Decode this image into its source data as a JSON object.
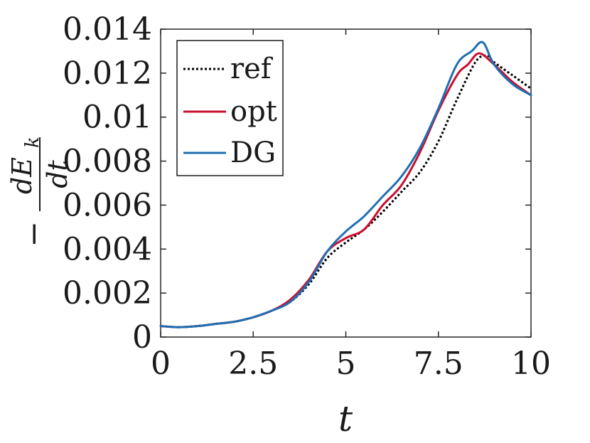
{
  "chart_data": {
    "type": "line",
    "title": "",
    "xlabel": "t",
    "ylabel": "-dE_k/dt",
    "ylabel_parts": {
      "sign": "−",
      "numerator": "dE",
      "subscript": "k",
      "denominator": "dt"
    },
    "xlim": [
      0,
      10
    ],
    "ylim": [
      0,
      0.014
    ],
    "xticks": [
      "0",
      "2.5",
      "5",
      "7.5",
      "10"
    ],
    "xtick_values": [
      0,
      2.5,
      5,
      7.5,
      10
    ],
    "yticks": [
      "0",
      "0.002",
      "0.004",
      "0.006",
      "0.008",
      "0.01",
      "0.012",
      "0.014"
    ],
    "ytick_values": [
      0,
      0.002,
      0.004,
      0.006,
      0.008,
      0.01,
      0.012,
      0.014
    ],
    "grid": false,
    "legend_position": "top-left",
    "series": [
      {
        "name": "ref",
        "color": "#000000",
        "style": "dotted",
        "x": [
          0,
          0.5,
          1,
          1.5,
          2,
          2.5,
          3,
          3.5,
          4,
          4.5,
          5,
          5.5,
          6,
          6.5,
          7,
          7.5,
          8,
          8.5,
          8.8,
          9,
          9.5,
          10
        ],
        "y": [
          0.0005,
          0.00045,
          0.0005,
          0.0006,
          0.0007,
          0.0009,
          0.0012,
          0.0016,
          0.0024,
          0.0036,
          0.0043,
          0.0049,
          0.0057,
          0.0066,
          0.0075,
          0.0089,
          0.0108,
          0.0125,
          0.0128,
          0.0125,
          0.0119,
          0.0113
        ]
      },
      {
        "name": "opt",
        "color": "#c8102e",
        "style": "solid",
        "x": [
          0,
          0.5,
          1,
          1.5,
          2,
          2.5,
          3,
          3.5,
          4,
          4.5,
          5,
          5.5,
          6,
          6.5,
          7,
          7.5,
          8,
          8.3,
          8.6,
          9,
          9.5,
          10
        ],
        "y": [
          0.0005,
          0.00045,
          0.0005,
          0.0006,
          0.0007,
          0.0009,
          0.0012,
          0.0017,
          0.0026,
          0.0039,
          0.0045,
          0.0049,
          0.006,
          0.0069,
          0.0084,
          0.0103,
          0.0119,
          0.0124,
          0.0129,
          0.0124,
          0.0116,
          0.011
        ]
      },
      {
        "name": "DG",
        "color": "#1f6fb2",
        "style": "solid",
        "x": [
          0,
          0.5,
          1,
          1.5,
          2,
          2.5,
          3,
          3.5,
          4,
          4.5,
          5,
          5.5,
          6,
          6.5,
          7,
          7.5,
          8,
          8.4,
          8.7,
          9,
          9.5,
          10
        ],
        "y": [
          0.0005,
          0.00045,
          0.0005,
          0.0006,
          0.0007,
          0.0009,
          0.0012,
          0.0016,
          0.0025,
          0.0039,
          0.0048,
          0.0055,
          0.0064,
          0.0073,
          0.0086,
          0.0104,
          0.0124,
          0.013,
          0.0134,
          0.0124,
          0.0115,
          0.011
        ]
      }
    ]
  }
}
